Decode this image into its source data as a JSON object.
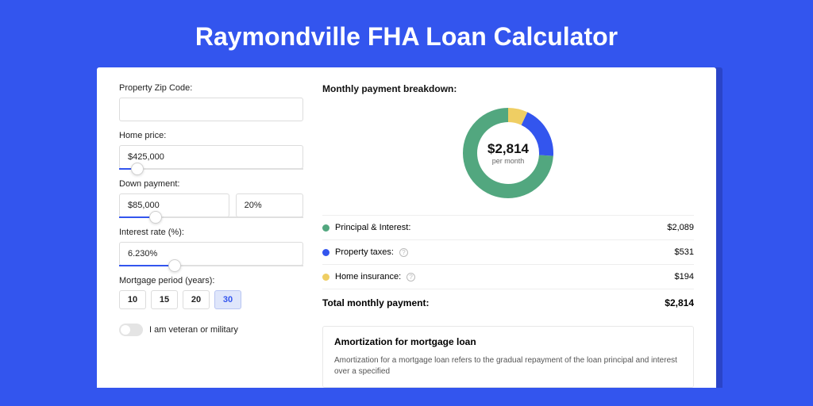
{
  "page": {
    "title": "Raymondville FHA Loan Calculator",
    "bg_color": "#3355ee",
    "card_shadow": "#2a44c8"
  },
  "form": {
    "zip": {
      "label": "Property Zip Code:",
      "value": ""
    },
    "home_price": {
      "label": "Home price:",
      "value": "$425,000",
      "slider_pct": 10
    },
    "down_payment": {
      "label": "Down payment:",
      "value": "$85,000",
      "pct_value": "20%",
      "slider_pct": 20
    },
    "interest": {
      "label": "Interest rate (%):",
      "value": "6.230%",
      "slider_pct": 30
    },
    "period": {
      "label": "Mortgage period (years):",
      "options": [
        "10",
        "15",
        "20",
        "30"
      ],
      "active": "30"
    },
    "veteran": {
      "label": "I am veteran or military",
      "on": false
    }
  },
  "breakdown": {
    "title": "Monthly payment breakdown:",
    "center_amount": "$2,814",
    "center_sub": "per month",
    "segments": {
      "principal": {
        "label": "Principal & Interest:",
        "amount": "$2,089",
        "color": "#52a77f",
        "pct": 74
      },
      "taxes": {
        "label": "Property taxes:",
        "amount": "$531",
        "color": "#3355ee",
        "pct": 19
      },
      "insurance": {
        "label": "Home insurance:",
        "amount": "$194",
        "color": "#efce63",
        "pct": 7
      }
    },
    "total": {
      "label": "Total monthly payment:",
      "amount": "$2,814"
    },
    "donut": {
      "circumference": 301.6,
      "stroke_width": 18
    }
  },
  "amortization": {
    "title": "Amortization for mortgage loan",
    "text": "Amortization for a mortgage loan refers to the gradual repayment of the loan principal and interest over a specified"
  }
}
